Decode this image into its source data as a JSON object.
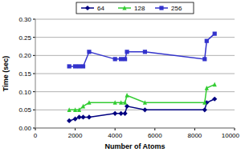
{
  "chart_data": {
    "type": "line",
    "x_label": "Number of Atoms",
    "y_label": "Time (sec)",
    "x": [
      1700,
      2000,
      2200,
      2400,
      2700,
      4000,
      4300,
      4500,
      4600,
      5500,
      8500,
      8600,
      9000
    ],
    "series": [
      {
        "name": "64",
        "color": "#000080",
        "marker": "diamond",
        "values": [
          0.02,
          0.025,
          0.03,
          0.03,
          0.03,
          0.04,
          0.04,
          0.04,
          0.06,
          0.05,
          0.05,
          0.07,
          0.08
        ]
      },
      {
        "name": "128",
        "color": "#33cc33",
        "marker": "triangle",
        "values": [
          0.05,
          0.05,
          0.05,
          0.06,
          0.07,
          0.07,
          0.07,
          0.07,
          0.09,
          0.07,
          0.07,
          0.11,
          0.12
        ]
      },
      {
        "name": "256",
        "color": "#3333cc",
        "marker": "square",
        "values": [
          0.17,
          0.17,
          0.17,
          0.17,
          0.21,
          0.19,
          0.19,
          0.19,
          0.21,
          0.21,
          0.19,
          0.24,
          0.26
        ]
      }
    ],
    "xlim": [
      0,
      10000
    ],
    "xticks": [
      0,
      2000,
      4000,
      6000,
      8000,
      10000
    ],
    "ylim": [
      0,
      0.3
    ],
    "yticks": [
      {
        "value": 0,
        "label": "0.00"
      },
      0.05,
      {
        "value": 0.1,
        "label": "0.10"
      },
      0.15,
      {
        "value": 0.2,
        "label": "0.20"
      },
      0.25,
      {
        "value": 0.3,
        "label": "0.30"
      }
    ],
    "grid": true,
    "legend": "top"
  }
}
